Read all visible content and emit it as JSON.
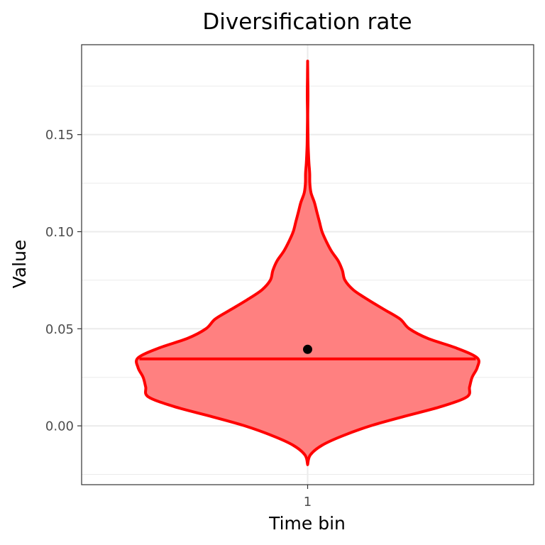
{
  "chart_data": {
    "type": "violin",
    "title": "Diversification rate",
    "xlabel": "Time bin",
    "ylabel": "Value",
    "categories": [
      "1"
    ],
    "ylim": [
      -0.0303,
      0.1963
    ],
    "y_ticks": [
      0.0,
      0.05,
      0.1,
      0.15
    ],
    "y_tick_labels": [
      "0.00",
      "0.05",
      "0.10",
      "0.15"
    ],
    "grid": true,
    "theme": "bw",
    "series": [
      {
        "category": "1",
        "fill_color": "#ff8080",
        "line_color": "#ff0000",
        "y_min": -0.02,
        "y_max": 0.187,
        "median": 0.0345,
        "mean": 0.0394,
        "density_profile": [
          {
            "y": -0.02,
            "w": 0.0
          },
          {
            "y": -0.015,
            "w": 0.016
          },
          {
            "y": -0.01,
            "w": 0.085
          },
          {
            "y": -0.005,
            "w": 0.21
          },
          {
            "y": 0.0,
            "w": 0.37
          },
          {
            "y": 0.005,
            "w": 0.575
          },
          {
            "y": 0.01,
            "w": 0.79
          },
          {
            "y": 0.015,
            "w": 0.94
          },
          {
            "y": 0.02,
            "w": 0.955
          },
          {
            "y": 0.025,
            "w": 0.97
          },
          {
            "y": 0.03,
            "w": 1.0
          },
          {
            "y": 0.035,
            "w": 1.0
          },
          {
            "y": 0.04,
            "w": 0.88
          },
          {
            "y": 0.045,
            "w": 0.71
          },
          {
            "y": 0.05,
            "w": 0.6
          },
          {
            "y": 0.055,
            "w": 0.545
          },
          {
            "y": 0.06,
            "w": 0.45
          },
          {
            "y": 0.065,
            "w": 0.355
          },
          {
            "y": 0.07,
            "w": 0.27
          },
          {
            "y": 0.075,
            "w": 0.22
          },
          {
            "y": 0.08,
            "w": 0.205
          },
          {
            "y": 0.085,
            "w": 0.18
          },
          {
            "y": 0.09,
            "w": 0.14
          },
          {
            "y": 0.095,
            "w": 0.11
          },
          {
            "y": 0.1,
            "w": 0.085
          },
          {
            "y": 0.105,
            "w": 0.07
          },
          {
            "y": 0.11,
            "w": 0.055
          },
          {
            "y": 0.115,
            "w": 0.04
          },
          {
            "y": 0.12,
            "w": 0.02
          },
          {
            "y": 0.125,
            "w": 0.013
          },
          {
            "y": 0.13,
            "w": 0.012
          },
          {
            "y": 0.135,
            "w": 0.008
          },
          {
            "y": 0.14,
            "w": 0.005
          },
          {
            "y": 0.145,
            "w": 0.003
          },
          {
            "y": 0.15,
            "w": 0.002
          },
          {
            "y": 0.16,
            "w": 0.001
          },
          {
            "y": 0.17,
            "w": 0.002
          },
          {
            "y": 0.18,
            "w": 0.001
          },
          {
            "y": 0.187,
            "w": 0.0
          }
        ]
      }
    ]
  }
}
